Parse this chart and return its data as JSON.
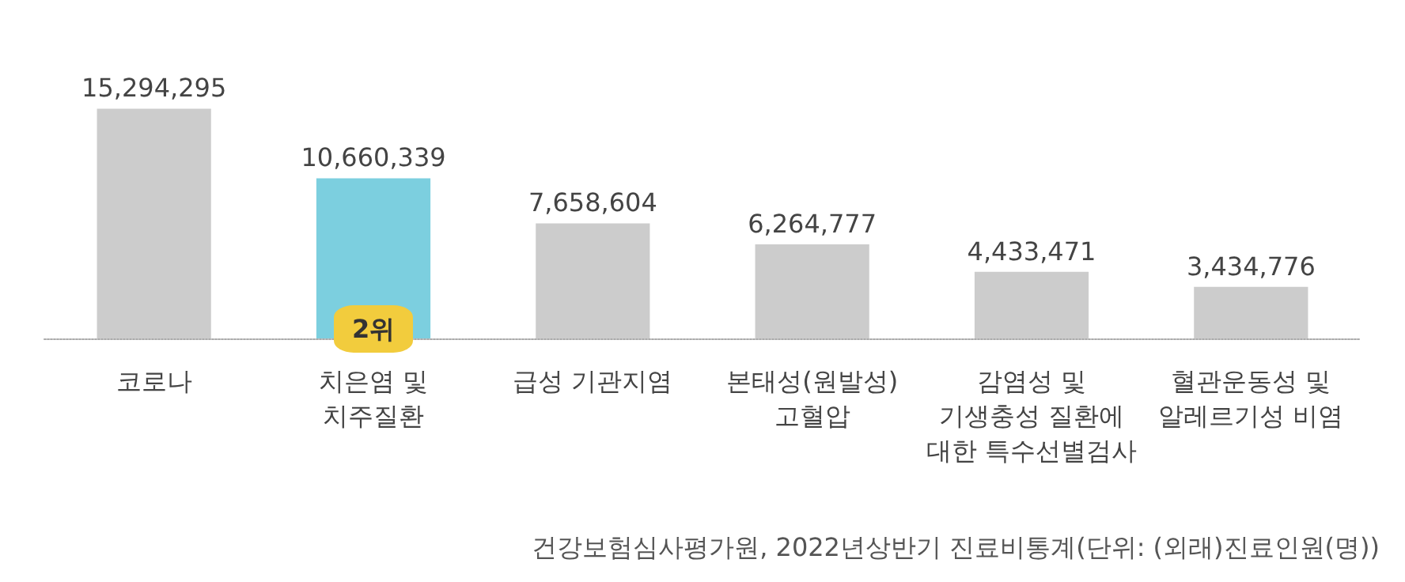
{
  "chart_data": {
    "type": "bar",
    "categories": [
      "코로나",
      "치은염 및\n치주질환",
      "급성 기관지염",
      "본태성(원발성)\n고혈압",
      "감염성 및\n기생충성 질환에\n대한 특수선별검사",
      "혈관운동성 및\n알레르기성 비염"
    ],
    "values": [
      15294295,
      10660339,
      7658604,
      6264777,
      4433471,
      3434776
    ],
    "colors": [
      "#cccccc",
      "#7ccfdf",
      "#cccccc",
      "#cccccc",
      "#cccccc",
      "#cccccc"
    ],
    "value_labels": [
      "15,294,295",
      "10,660,339",
      "7,658,604",
      "6,264,777",
      "4,433,471",
      "3,434,776"
    ],
    "annotations": [
      {
        "text": "2위",
        "x": "치은염 및\n치주질환",
        "y": 0
      },
      "건강보험심사평가원, 2022년상반기 진료비통계(단위: (외래)진료인원(명))"
    ]
  }
}
